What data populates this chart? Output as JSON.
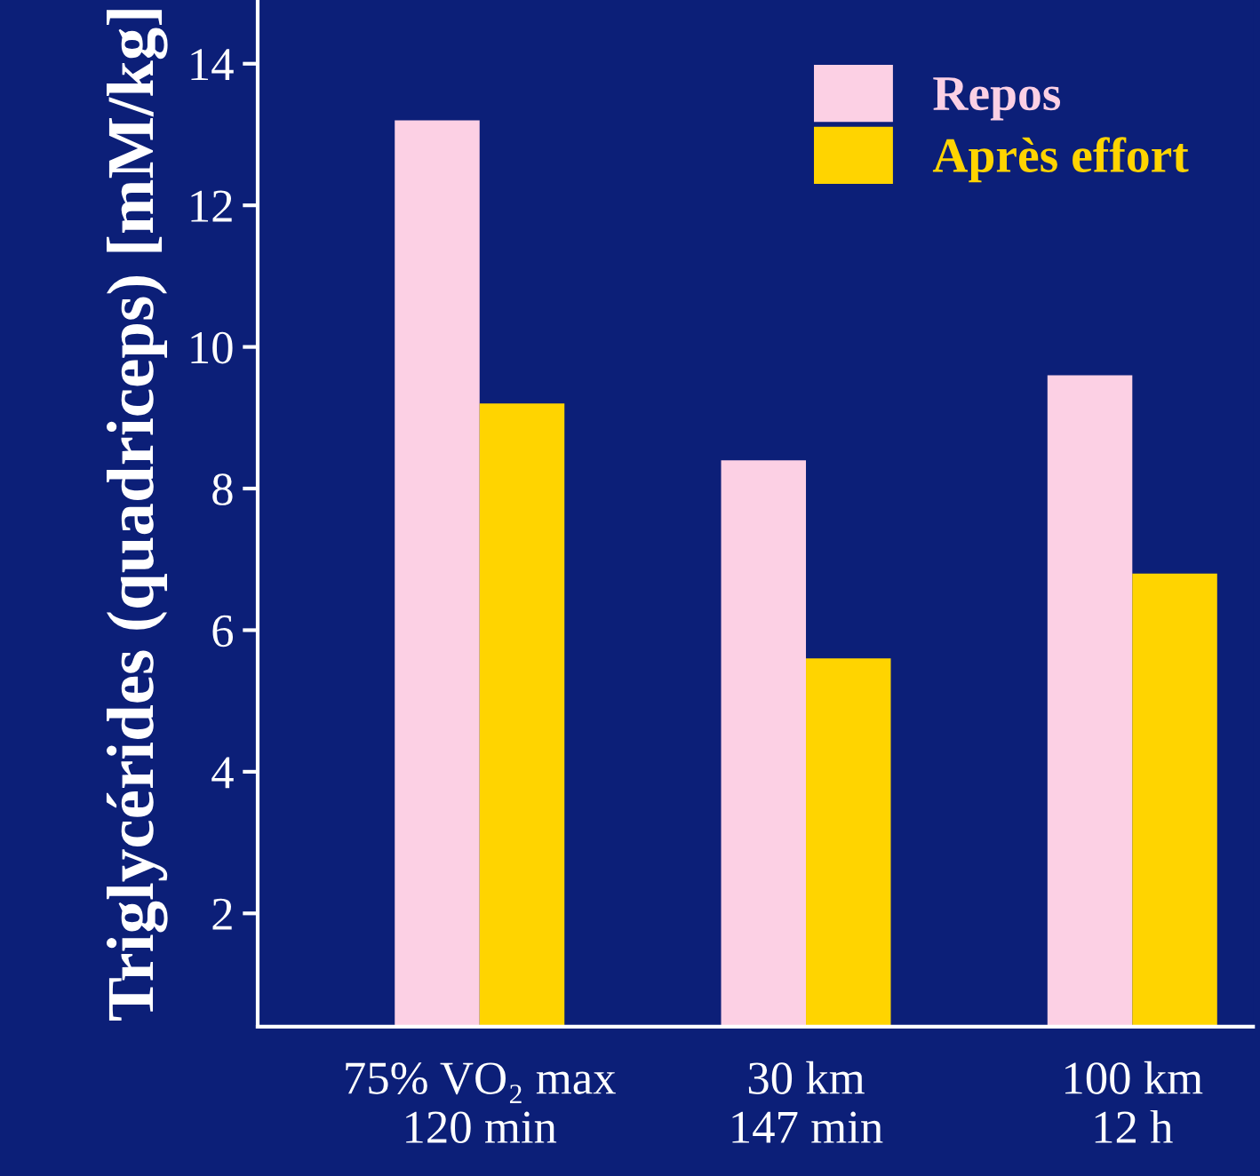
{
  "chart_data": {
    "type": "bar",
    "ylabel": "Triglycérides (quadriceps) [mM/kg]",
    "categories": [
      "75% VO₂ max\n120 min",
      "30 km\n147 min",
      "100 km\n12 h"
    ],
    "series": [
      {
        "name": "Repos",
        "color": "#fcd0e4",
        "values": [
          13.2,
          8.4,
          9.6
        ]
      },
      {
        "name": "Après effort",
        "color": "#ffd400",
        "values": [
          9.2,
          5.6,
          6.8
        ]
      }
    ],
    "ylim": [
      0.4,
      14.9
    ],
    "yticks": [
      2,
      4,
      6,
      8,
      10,
      12,
      14
    ],
    "grid": false,
    "legend": "top right"
  }
}
